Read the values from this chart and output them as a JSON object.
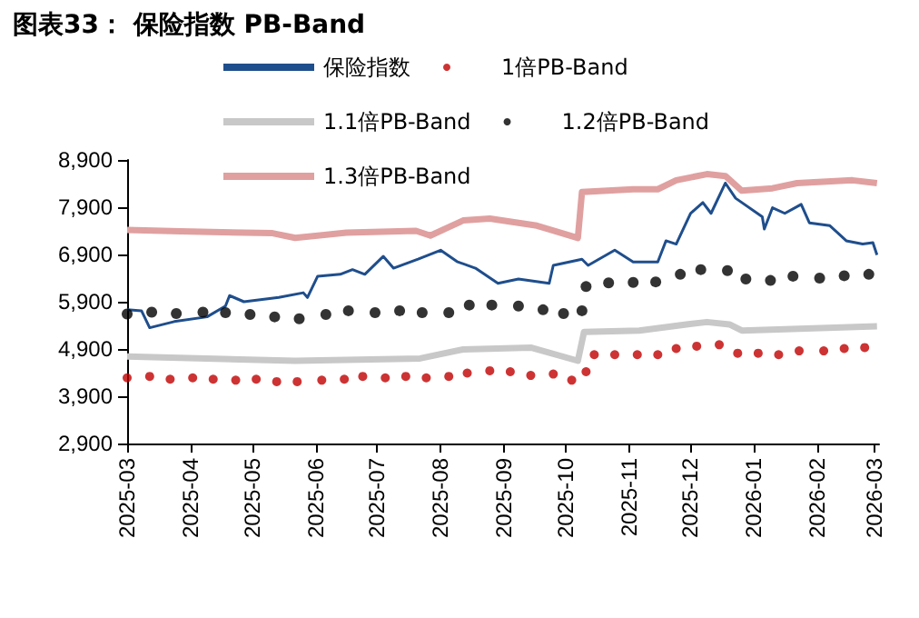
{
  "chart_data": {
    "type": "line",
    "title": "图表33： 保险指数 PB-Band",
    "xlim": [
      "2025-03-01",
      "2026-03-03"
    ],
    "xticks": [
      "2025-03",
      "2025-04",
      "2025-05",
      "2025-06",
      "2025-07",
      "2025-08",
      "2025-09",
      "2025-10",
      "2025-11",
      "2025-12",
      "2026-01",
      "2026-02",
      "2026-03"
    ],
    "ylim": [
      2900,
      8900
    ],
    "yticks": [
      {
        "value": 2900,
        "label": "2,900"
      },
      {
        "value": 3900,
        "label": "3,900"
      },
      {
        "value": 4900,
        "label": "4,900"
      },
      {
        "value": 5900,
        "label": "5,900"
      },
      {
        "value": 6900,
        "label": "6,900"
      },
      {
        "value": 7900,
        "label": "7,900"
      },
      {
        "value": 8900,
        "label": "8,900"
      }
    ],
    "grid": false,
    "legend": "top",
    "series": [
      {
        "name": "保险指数",
        "color": "#1f4e8c",
        "x": [
          "2025-03-01",
          "2025-03-08",
          "2025-03-12",
          "2025-03-24",
          "2025-04-09",
          "2025-04-18",
          "2025-04-20",
          "2025-04-27",
          "2025-05-14",
          "2025-05-26",
          "2025-05-28",
          "2025-06-02",
          "2025-06-13",
          "2025-06-19",
          "2025-06-25",
          "2025-07-04",
          "2025-07-09",
          "2025-07-21",
          "2025-08-01",
          "2025-08-09",
          "2025-08-18",
          "2025-08-29",
          "2025-09-08",
          "2025-09-23",
          "2025-09-25",
          "2025-10-09",
          "2025-10-12",
          "2025-10-25",
          "2025-11-03",
          "2025-11-15",
          "2025-11-19",
          "2025-11-24",
          "2025-12-01",
          "2025-12-07",
          "2025-12-11",
          "2025-12-18",
          "2025-12-23",
          "2026-01-05",
          "2026-01-06",
          "2026-01-10",
          "2026-01-16",
          "2026-01-24",
          "2026-01-28",
          "2026-02-07",
          "2026-02-15",
          "2026-02-23",
          "2026-02-28",
          "2026-03-02"
        ],
        "values": [
          5730,
          5710,
          5350,
          5480,
          5580,
          5810,
          6030,
          5900,
          5990,
          6090,
          5990,
          6440,
          6480,
          6580,
          6480,
          6860,
          6610,
          6800,
          6990,
          6750,
          6610,
          6290,
          6380,
          6290,
          6670,
          6800,
          6670,
          6990,
          6740,
          6740,
          7190,
          7120,
          7770,
          8000,
          7770,
          8410,
          8090,
          7700,
          7440,
          7890,
          7770,
          7960,
          7570,
          7510,
          7190,
          7120,
          7150,
          6890
        ]
      },
      {
        "name": "1倍PB-Band",
        "type": "scatter",
        "marker": "circle",
        "color": "#c00000",
        "x": [
          "2025-03-01",
          "2025-03-12",
          "2025-03-22",
          "2025-04-02",
          "2025-04-12",
          "2025-04-23",
          "2025-05-03",
          "2025-05-13",
          "2025-05-23",
          "2025-06-04",
          "2025-06-15",
          "2025-06-24",
          "2025-07-05",
          "2025-07-15",
          "2025-07-25",
          "2025-08-05",
          "2025-08-14",
          "2025-08-25",
          "2025-09-04",
          "2025-09-14",
          "2025-09-25",
          "2025-10-04",
          "2025-10-11",
          "2025-10-15",
          "2025-10-25",
          "2025-11-05",
          "2025-11-15",
          "2025-11-24",
          "2025-12-04",
          "2025-12-15",
          "2025-12-24",
          "2026-01-03",
          "2026-01-13",
          "2026-01-23",
          "2026-02-04",
          "2026-02-14",
          "2026-02-24"
        ],
        "values": [
          4290,
          4320,
          4260,
          4290,
          4260,
          4240,
          4260,
          4210,
          4210,
          4240,
          4260,
          4320,
          4290,
          4320,
          4290,
          4320,
          4390,
          4440,
          4420,
          4340,
          4370,
          4240,
          4420,
          4780,
          4780,
          4780,
          4780,
          4910,
          4960,
          4990,
          4810,
          4810,
          4780,
          4860,
          4860,
          4910,
          4930
        ]
      },
      {
        "name": "1.1倍PB-Band",
        "color": "#c8c8c8",
        "x": [
          "2025-03-01",
          "2025-05-22",
          "2025-07-22",
          "2025-08-12",
          "2025-09-14",
          "2025-10-07",
          "2025-10-10",
          "2025-11-06",
          "2025-11-29",
          "2025-12-09",
          "2025-12-20",
          "2025-12-26",
          "2026-01-16",
          "2026-03-02"
        ],
        "values": [
          4740,
          4650,
          4700,
          4890,
          4930,
          4650,
          5260,
          5290,
          5420,
          5470,
          5420,
          5290,
          5320,
          5380
        ]
      },
      {
        "name": "1.2倍PB-Band",
        "type": "scatter",
        "marker": "circle",
        "color": "#000000",
        "x": [
          "2025-03-01",
          "2025-03-13",
          "2025-03-25",
          "2025-04-07",
          "2025-04-18",
          "2025-04-30",
          "2025-05-12",
          "2025-05-24",
          "2025-06-06",
          "2025-06-17",
          "2025-06-30",
          "2025-07-12",
          "2025-07-23",
          "2025-08-05",
          "2025-08-15",
          "2025-08-26",
          "2025-09-08",
          "2025-09-20",
          "2025-09-30",
          "2025-10-09",
          "2025-10-11",
          "2025-10-22",
          "2025-11-03",
          "2025-11-14",
          "2025-11-26",
          "2025-12-06",
          "2025-12-19",
          "2025-12-28",
          "2026-01-09",
          "2026-01-20",
          "2026-02-02",
          "2026-02-14",
          "2026-02-26"
        ],
        "values": [
          5640,
          5680,
          5650,
          5680,
          5670,
          5630,
          5580,
          5540,
          5630,
          5710,
          5670,
          5710,
          5670,
          5670,
          5830,
          5830,
          5810,
          5730,
          5650,
          5710,
          6220,
          6300,
          6310,
          6320,
          6480,
          6580,
          6560,
          6380,
          6350,
          6440,
          6400,
          6450,
          6480
        ]
      },
      {
        "name": "1.3倍PB-Band",
        "color": "#e0a0a0",
        "x": [
          "2025-03-01",
          "2025-03-27",
          "2025-05-11",
          "2025-05-22",
          "2025-06-16",
          "2025-07-20",
          "2025-07-27",
          "2025-08-12",
          "2025-08-25",
          "2025-09-17",
          "2025-10-07",
          "2025-10-09",
          "2025-11-03",
          "2025-11-15",
          "2025-11-24",
          "2025-12-09",
          "2025-12-18",
          "2025-12-26",
          "2026-01-10",
          "2026-01-22",
          "2026-02-18",
          "2026-03-02"
        ],
        "values": [
          7420,
          7390,
          7350,
          7250,
          7360,
          7400,
          7300,
          7620,
          7660,
          7510,
          7250,
          8220,
          8280,
          8280,
          8470,
          8600,
          8560,
          8250,
          8300,
          8410,
          8470,
          8410
        ]
      }
    ]
  }
}
